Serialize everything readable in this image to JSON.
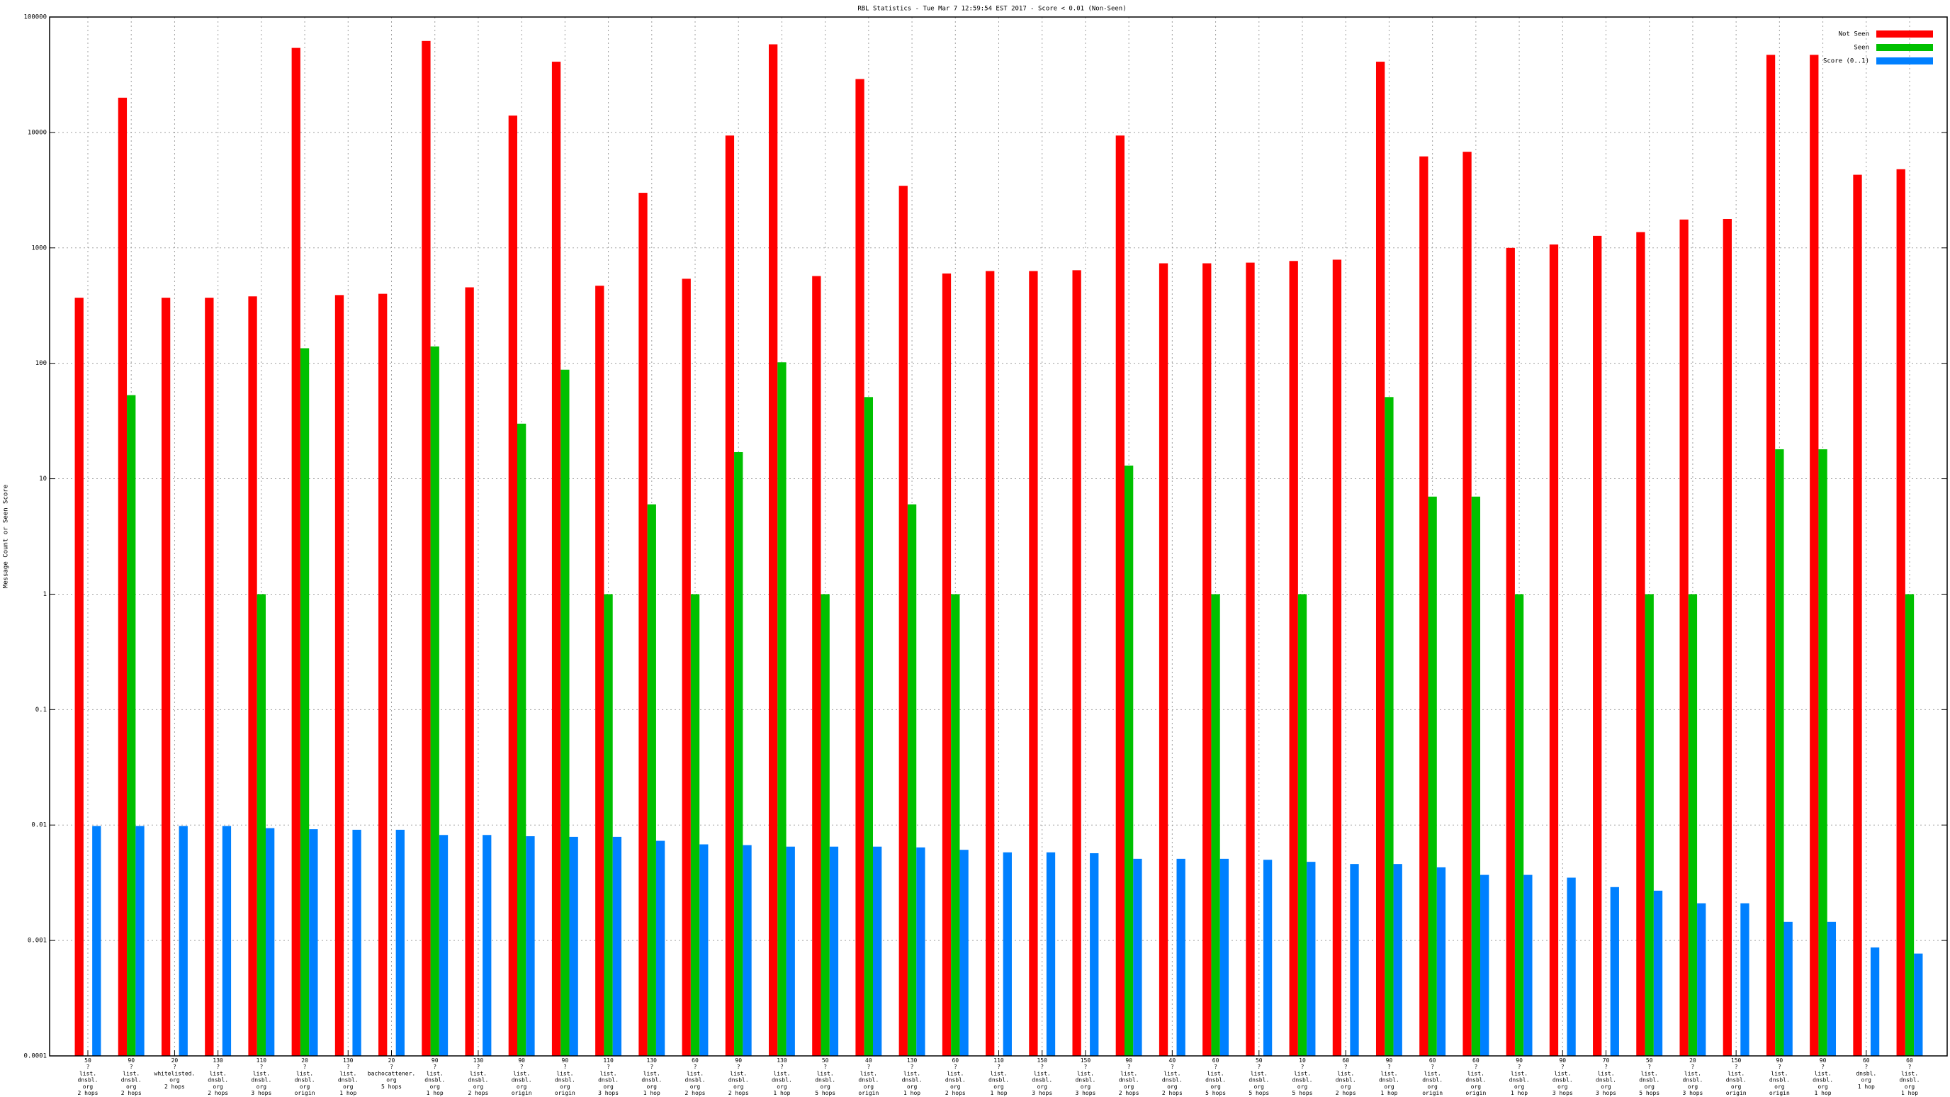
{
  "chart_data": {
    "type": "bar",
    "title": "RBL Statistics - Tue Mar  7 12:59:54 EST 2017 - Score < 0.01 (Non-Seen)",
    "y_label": "Message Count or Seen Score",
    "log_y": true,
    "grid": true,
    "legend": "top-right",
    "categories": [
      "50\n?\nlist.\ndnsbl.\norg\n2 hops",
      "90\n?\nlist.\ndnsbl.\norg\n2 hops",
      "20\n?\nwhitelisted.\norg\n2 hops",
      "130\n?\nlist.\ndnsbl.\norg\n2 hops",
      "110\n?\nlist.\ndnsbl.\norg\n3 hops",
      "20\n?\nlist.\ndnsbl.\norg\norigin",
      "130\n?\nlist.\ndnsbl.\norg\n1 hop",
      "20\n?\nbachocattener.\norg\n5 hops",
      "90\n?\nlist.\ndnsbl.\norg\n1 hop",
      "130\n?\nlist.\ndnsbl.\norg\n2 hops",
      "90\n?\nlist.\ndnsbl.\norg\norigin",
      "90\n?\nlist.\ndnsbl.\norg\norigin",
      "110\n?\nlist.\ndnsbl.\norg\n3 hops",
      "130\n?\nlist.\ndnsbl.\norg\n1 hop",
      "60\n?\nlist.\ndnsbl.\norg\n2 hops",
      "90\n?\nlist.\ndnsbl.\norg\n2 hops",
      "130\n?\nlist.\ndnsbl.\norg\n1 hop",
      "50\n?\nlist.\ndnsbl.\norg\n5 hops",
      "40\n?\nlist.\ndnsbl.\norg\norigin",
      "130\n?\nlist.\ndnsbl.\norg\n1 hop",
      "60\n?\nlist.\ndnsbl.\norg\n2 hops",
      "110\n?\nlist.\ndnsbl.\norg\n1 hop",
      "150\n?\nlist.\ndnsbl.\norg\n3 hops",
      "150\n?\nlist.\ndnsbl.\norg\n3 hops",
      "90\n?\nlist.\ndnsbl.\norg\n2 hops",
      "40\n?\nlist.\ndnsbl.\norg\n2 hops",
      "60\n?\nlist.\ndnsbl.\norg\n5 hops",
      "50\n?\nlist.\ndnsbl.\norg\n5 hops",
      "10\n?\nlist.\ndnsbl.\norg\n5 hops",
      "60\n?\nlist.\ndnsbl.\norg\n2 hops",
      "90\n?\nlist.\ndnsbl.\norg\n1 hop",
      "60\n?\nlist.\ndnsbl.\norg\norigin",
      "60\n?\nlist.\ndnsbl.\norg\norigin",
      "90\n?\nlist.\ndnsbl.\norg\n1 hop",
      "90\n?\nlist.\ndnsbl.\norg\n3 hops",
      "70\n?\nlist.\ndnsbl.\norg\n3 hops",
      "50\n?\nlist.\ndnsbl.\norg\n5 hops",
      "20\n?\nlist.\ndnsbl.\norg\n3 hops",
      "150\n?\nlist.\ndnsbl.\norg\norigin",
      "90\n?\nlist.\ndnsbl.\norg\norigin",
      "90\n?\nlist.\ndnsbl.\norg\n1 hop",
      "60\n?\ndnsbl.\norg\n1 hop",
      "60\n?\nlist.\ndnsbl.\norg\n1 hop"
    ],
    "series": [
      {
        "name": "Not Seen",
        "color": "#ff0000",
        "values": [
          370,
          20000,
          370,
          370,
          380,
          54000,
          390,
          400,
          62000,
          455,
          14000,
          41000,
          470,
          3000,
          540,
          9400,
          58000,
          570,
          29000,
          3450,
          600,
          630,
          630,
          640,
          9400,
          735,
          735,
          745,
          770,
          790,
          41000,
          6200,
          6800,
          1000,
          1070,
          1270,
          1370,
          1760,
          1780,
          47000,
          47000,
          4300,
          4800
        ]
      },
      {
        "name": "Seen",
        "color": "#00c000",
        "values": [
          null,
          53,
          null,
          null,
          1,
          135,
          null,
          null,
          140,
          null,
          30,
          88,
          1,
          6,
          1,
          17,
          102,
          1,
          51,
          6,
          1,
          null,
          null,
          null,
          13,
          null,
          1,
          null,
          1,
          null,
          51,
          7,
          7,
          1,
          null,
          null,
          1,
          1,
          null,
          18,
          18,
          null,
          1
        ]
      },
      {
        "name": "Score (0..1)",
        "color": "#0080ff",
        "values": [
          0.0098,
          0.0098,
          0.0098,
          0.0098,
          0.0094,
          0.0092,
          0.0091,
          0.0091,
          0.0082,
          0.0082,
          0.008,
          0.0079,
          0.0079,
          0.0073,
          0.0068,
          0.0067,
          0.0065,
          0.0065,
          0.0065,
          0.0064,
          0.0061,
          0.0058,
          0.0058,
          0.0057,
          0.0051,
          0.0051,
          0.0051,
          0.005,
          0.0048,
          0.0046,
          0.0046,
          0.0043,
          0.0037,
          0.0037,
          0.0035,
          0.0029,
          0.0027,
          0.0021,
          0.0021,
          0.00145,
          0.00145,
          0.00087,
          0.00077
        ]
      }
    ],
    "ylim": [
      0.0001,
      100000
    ],
    "yticks": [
      0.0001,
      0.001,
      0.01,
      0.1,
      1,
      10,
      100,
      1000,
      10000,
      100000
    ]
  }
}
